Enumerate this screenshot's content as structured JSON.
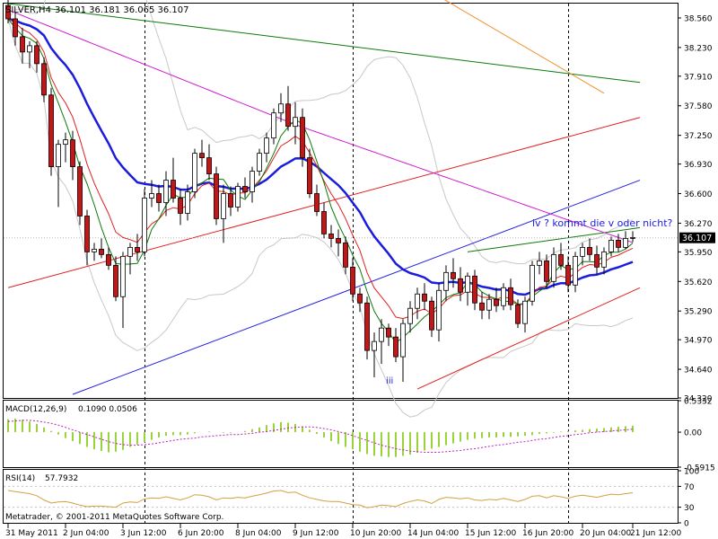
{
  "header": {
    "symbol": "SILVER,H4",
    "ohlc": "36.101 36.181 36.065 36.107"
  },
  "annotations": {
    "wave_note": "iv ? kommt die v oder nicht?",
    "wave_label": "iii"
  },
  "footer": {
    "copyright": "Metatrader, © 2001-2011 MetaQuotes Software Corp."
  },
  "colors": {
    "background": "#ffffff",
    "bull_candle": "#ffffff",
    "bear_candle": "#c81414",
    "candle_outline": "#000000",
    "ma_blue": "#1c1cdc",
    "ma_red": "#e02020",
    "ma_green": "#0a7a0a",
    "ma_magenta": "#d020d0",
    "ma_orange": "#f0902a",
    "bollinger": "#c8c8c8",
    "channel_red": "#e02020",
    "channel_blue": "#2020e0",
    "trend_green": "#0a7a0a",
    "annotation": "#1c1cdc",
    "macd_hist": "#9ad23a",
    "macd_signal": "#c020c0",
    "rsi_line": "#d4a040",
    "price_marker": "#000000"
  },
  "chart_data": [
    {
      "type": "candlestick",
      "title": "SILVER,H4",
      "price_axis_ticks": [
        38.56,
        38.23,
        37.91,
        37.58,
        37.25,
        36.93,
        36.6,
        36.27,
        35.95,
        35.62,
        35.29,
        34.97,
        34.64,
        34.32
      ],
      "price_axis_labels": [
        "38.560",
        "38.230",
        "37.910",
        "37.580",
        "37.250",
        "36.930",
        "36.600",
        "36.270",
        "35.950",
        "35.620",
        "35.290",
        "34.970",
        "34.640",
        "34.320"
      ],
      "ylim": [
        34.32,
        38.72
      ],
      "current_price": 36.107,
      "current_price_label": "36.107",
      "time_axis_labels": [
        "31 May 2011",
        "2 Jun 04:00",
        "3 Jun 12:00",
        "6 Jun 20:00",
        "8 Jun 04:00",
        "9 Jun 12:00",
        "10 Jun 20:00",
        "14 Jun 04:00",
        "15 Jun 12:00",
        "16 Jun 20:00",
        "20 Jun 04:00",
        "21 Jun 12:00"
      ],
      "time_axis_bar_index": [
        0,
        8,
        16,
        24,
        32,
        40,
        48,
        56,
        64,
        72,
        80,
        87
      ],
      "period_separators_bar_index": [
        19,
        48,
        78
      ],
      "candles": [
        {
          "o": 38.7,
          "h": 38.8,
          "l": 38.5,
          "c": 38.55
        },
        {
          "o": 38.55,
          "h": 38.62,
          "l": 38.25,
          "c": 38.35
        },
        {
          "o": 38.35,
          "h": 38.45,
          "l": 38.05,
          "c": 38.18
        },
        {
          "o": 38.18,
          "h": 38.3,
          "l": 38.0,
          "c": 38.25
        },
        {
          "o": 38.25,
          "h": 38.3,
          "l": 37.95,
          "c": 38.05
        },
        {
          "o": 38.05,
          "h": 38.12,
          "l": 37.62,
          "c": 37.7
        },
        {
          "o": 37.7,
          "h": 37.78,
          "l": 36.8,
          "c": 36.9
        },
        {
          "o": 36.9,
          "h": 37.2,
          "l": 36.45,
          "c": 37.15
        },
        {
          "o": 37.15,
          "h": 37.28,
          "l": 36.95,
          "c": 37.2
        },
        {
          "o": 37.2,
          "h": 37.3,
          "l": 36.75,
          "c": 36.9
        },
        {
          "o": 36.9,
          "h": 36.96,
          "l": 36.25,
          "c": 36.35
        },
        {
          "o": 36.35,
          "h": 36.42,
          "l": 35.8,
          "c": 35.95
        },
        {
          "o": 35.95,
          "h": 36.05,
          "l": 35.85,
          "c": 35.98
        },
        {
          "o": 35.98,
          "h": 36.1,
          "l": 35.88,
          "c": 35.92
        },
        {
          "o": 35.92,
          "h": 36.0,
          "l": 35.75,
          "c": 35.8
        },
        {
          "o": 35.8,
          "h": 35.9,
          "l": 35.4,
          "c": 35.45
        },
        {
          "o": 35.45,
          "h": 35.95,
          "l": 35.1,
          "c": 35.9
        },
        {
          "o": 35.9,
          "h": 36.05,
          "l": 35.7,
          "c": 36.0
        },
        {
          "o": 36.0,
          "h": 36.15,
          "l": 35.85,
          "c": 35.95
        },
        {
          "o": 35.95,
          "h": 36.65,
          "l": 35.9,
          "c": 36.55
        },
        {
          "o": 36.55,
          "h": 36.75,
          "l": 36.45,
          "c": 36.6
        },
        {
          "o": 36.6,
          "h": 36.7,
          "l": 36.4,
          "c": 36.5
        },
        {
          "o": 36.5,
          "h": 36.85,
          "l": 36.35,
          "c": 36.75
        },
        {
          "o": 36.75,
          "h": 37.0,
          "l": 36.5,
          "c": 36.55
        },
        {
          "o": 36.55,
          "h": 36.65,
          "l": 36.25,
          "c": 36.38
        },
        {
          "o": 36.38,
          "h": 36.7,
          "l": 36.3,
          "c": 36.62
        },
        {
          "o": 36.62,
          "h": 37.1,
          "l": 36.55,
          "c": 37.05
        },
        {
          "o": 37.05,
          "h": 37.2,
          "l": 36.9,
          "c": 37.0
        },
        {
          "o": 37.0,
          "h": 37.15,
          "l": 36.75,
          "c": 36.82
        },
        {
          "o": 36.82,
          "h": 36.9,
          "l": 36.25,
          "c": 36.32
        },
        {
          "o": 36.32,
          "h": 36.7,
          "l": 36.05,
          "c": 36.6
        },
        {
          "o": 36.6,
          "h": 36.68,
          "l": 36.35,
          "c": 36.45
        },
        {
          "o": 36.45,
          "h": 36.72,
          "l": 36.4,
          "c": 36.68
        },
        {
          "o": 36.68,
          "h": 36.78,
          "l": 36.55,
          "c": 36.62
        },
        {
          "o": 36.62,
          "h": 36.9,
          "l": 36.5,
          "c": 36.85
        },
        {
          "o": 36.85,
          "h": 37.1,
          "l": 36.8,
          "c": 37.05
        },
        {
          "o": 37.05,
          "h": 37.28,
          "l": 36.95,
          "c": 37.22
        },
        {
          "o": 37.22,
          "h": 37.55,
          "l": 37.15,
          "c": 37.5
        },
        {
          "o": 37.5,
          "h": 37.72,
          "l": 37.4,
          "c": 37.6
        },
        {
          "o": 37.6,
          "h": 37.8,
          "l": 37.3,
          "c": 37.35
        },
        {
          "o": 37.35,
          "h": 37.62,
          "l": 37.15,
          "c": 37.45
        },
        {
          "o": 37.45,
          "h": 37.55,
          "l": 36.9,
          "c": 37.0
        },
        {
          "o": 37.0,
          "h": 37.1,
          "l": 36.55,
          "c": 36.6
        },
        {
          "o": 36.6,
          "h": 36.7,
          "l": 36.35,
          "c": 36.4
        },
        {
          "o": 36.4,
          "h": 36.5,
          "l": 36.1,
          "c": 36.15
        },
        {
          "o": 36.15,
          "h": 36.25,
          "l": 36.0,
          "c": 36.1
        },
        {
          "o": 36.1,
          "h": 36.2,
          "l": 35.9,
          "c": 36.05
        },
        {
          "o": 36.05,
          "h": 36.12,
          "l": 35.7,
          "c": 35.78
        },
        {
          "o": 35.78,
          "h": 35.88,
          "l": 35.4,
          "c": 35.48
        },
        {
          "o": 35.48,
          "h": 35.55,
          "l": 35.28,
          "c": 35.38
        },
        {
          "o": 35.38,
          "h": 35.45,
          "l": 34.75,
          "c": 34.85
        },
        {
          "o": 34.85,
          "h": 35.05,
          "l": 34.55,
          "c": 34.95
        },
        {
          "o": 34.95,
          "h": 35.2,
          "l": 34.7,
          "c": 35.1
        },
        {
          "o": 35.1,
          "h": 35.15,
          "l": 34.9,
          "c": 35.0
        },
        {
          "o": 35.0,
          "h": 35.1,
          "l": 34.72,
          "c": 34.78
        },
        {
          "o": 34.78,
          "h": 35.2,
          "l": 34.5,
          "c": 35.15
        },
        {
          "o": 35.15,
          "h": 35.4,
          "l": 35.05,
          "c": 35.32
        },
        {
          "o": 35.32,
          "h": 35.55,
          "l": 35.2,
          "c": 35.48
        },
        {
          "o": 35.48,
          "h": 35.6,
          "l": 35.3,
          "c": 35.4
        },
        {
          "o": 35.4,
          "h": 35.45,
          "l": 35.0,
          "c": 35.08
        },
        {
          "o": 35.08,
          "h": 35.6,
          "l": 34.95,
          "c": 35.52
        },
        {
          "o": 35.52,
          "h": 35.8,
          "l": 35.4,
          "c": 35.72
        },
        {
          "o": 35.72,
          "h": 35.88,
          "l": 35.55,
          "c": 35.65
        },
        {
          "o": 35.65,
          "h": 35.78,
          "l": 35.4,
          "c": 35.5
        },
        {
          "o": 35.5,
          "h": 35.72,
          "l": 35.35,
          "c": 35.68
        },
        {
          "o": 35.68,
          "h": 35.75,
          "l": 35.3,
          "c": 35.38
        },
        {
          "o": 35.38,
          "h": 35.5,
          "l": 35.2,
          "c": 35.3
        },
        {
          "o": 35.3,
          "h": 35.48,
          "l": 35.2,
          "c": 35.42
        },
        {
          "o": 35.42,
          "h": 35.55,
          "l": 35.28,
          "c": 35.35
        },
        {
          "o": 35.35,
          "h": 35.6,
          "l": 35.3,
          "c": 35.55
        },
        {
          "o": 35.55,
          "h": 35.65,
          "l": 35.3,
          "c": 35.36
        },
        {
          "o": 35.36,
          "h": 35.42,
          "l": 35.1,
          "c": 35.15
        },
        {
          "o": 35.15,
          "h": 35.45,
          "l": 35.05,
          "c": 35.4
        },
        {
          "o": 35.4,
          "h": 35.85,
          "l": 35.35,
          "c": 35.8
        },
        {
          "o": 35.8,
          "h": 35.95,
          "l": 35.7,
          "c": 35.85
        },
        {
          "o": 35.85,
          "h": 35.92,
          "l": 35.55,
          "c": 35.62
        },
        {
          "o": 35.62,
          "h": 36.0,
          "l": 35.55,
          "c": 35.92
        },
        {
          "o": 35.92,
          "h": 36.05,
          "l": 35.75,
          "c": 35.8
        },
        {
          "o": 35.8,
          "h": 35.9,
          "l": 35.5,
          "c": 35.58
        },
        {
          "o": 35.58,
          "h": 35.95,
          "l": 35.5,
          "c": 35.9
        },
        {
          "o": 35.9,
          "h": 36.05,
          "l": 35.8,
          "c": 36.0
        },
        {
          "o": 36.0,
          "h": 36.1,
          "l": 35.85,
          "c": 35.92
        },
        {
          "o": 35.92,
          "h": 36.02,
          "l": 35.7,
          "c": 35.78
        },
        {
          "o": 35.78,
          "h": 36.0,
          "l": 35.7,
          "c": 35.95
        },
        {
          "o": 35.95,
          "h": 36.12,
          "l": 35.9,
          "c": 36.08
        },
        {
          "o": 36.08,
          "h": 36.15,
          "l": 35.95,
          "c": 36.0
        },
        {
          "o": 36.0,
          "h": 36.18,
          "l": 35.98,
          "c": 36.1
        },
        {
          "o": 36.1,
          "h": 36.18,
          "l": 36.06,
          "c": 36.11
        }
      ],
      "overlay_lines": [
        {
          "color_key": "channel_red",
          "p1": [
            0,
            35.55
          ],
          "p2": [
            88,
            37.45
          ]
        },
        {
          "color_key": "channel_red",
          "p1": [
            57,
            34.42
          ],
          "p2": [
            88,
            35.55
          ]
        },
        {
          "color_key": "channel_blue",
          "p1": [
            9,
            34.36
          ],
          "p2": [
            88,
            36.75
          ]
        },
        {
          "color_key": "trend_green",
          "p1": [
            0,
            38.72
          ],
          "p2": [
            88,
            37.84
          ]
        },
        {
          "color_key": "trend_green",
          "p1": [
            64,
            35.95
          ],
          "p2": [
            88,
            36.22
          ]
        },
        {
          "color_key": "ma_orange",
          "p1": [
            60,
            38.8
          ],
          "p2": [
            83,
            37.72
          ]
        }
      ]
    },
    {
      "type": "bar",
      "title": "MACD(12,26,9)",
      "values_label": "0.1090 0.0506",
      "axis_labels": [
        "0.5332",
        "0.00",
        "-0.5915"
      ],
      "ylim": [
        -0.5915,
        0.5332
      ],
      "histogram": [
        0.22,
        0.23,
        0.21,
        0.18,
        0.14,
        0.08,
        0.02,
        -0.04,
        -0.1,
        -0.15,
        -0.2,
        -0.25,
        -0.29,
        -0.32,
        -0.34,
        -0.33,
        -0.3,
        -0.25,
        -0.21,
        -0.17,
        -0.13,
        -0.09,
        -0.06,
        -0.05,
        -0.05,
        -0.04,
        -0.02,
        0.0,
        0.01,
        0.0,
        -0.01,
        -0.01,
        0.0,
        0.02,
        0.05,
        0.08,
        0.12,
        0.15,
        0.17,
        0.16,
        0.14,
        0.1,
        0.04,
        -0.03,
        -0.09,
        -0.15,
        -0.2,
        -0.25,
        -0.29,
        -0.33,
        -0.37,
        -0.4,
        -0.41,
        -0.42,
        -0.42,
        -0.4,
        -0.38,
        -0.35,
        -0.31,
        -0.28,
        -0.25,
        -0.22,
        -0.19,
        -0.16,
        -0.13,
        -0.11,
        -0.1,
        -0.09,
        -0.09,
        -0.08,
        -0.08,
        -0.07,
        -0.06,
        -0.05,
        -0.03,
        -0.02,
        -0.01,
        0.01,
        0.02,
        0.03,
        0.04,
        0.05,
        0.06,
        0.07,
        0.08,
        0.09,
        0.1,
        0.11
      ],
      "signal": [
        0.18,
        0.19,
        0.2,
        0.2,
        0.19,
        0.17,
        0.15,
        0.12,
        0.08,
        0.04,
        0.0,
        -0.04,
        -0.08,
        -0.12,
        -0.16,
        -0.19,
        -0.21,
        -0.22,
        -0.22,
        -0.21,
        -0.2,
        -0.18,
        -0.16,
        -0.14,
        -0.12,
        -0.11,
        -0.1,
        -0.08,
        -0.07,
        -0.06,
        -0.05,
        -0.04,
        -0.04,
        -0.03,
        -0.02,
        0.0,
        0.01,
        0.03,
        0.05,
        0.07,
        0.08,
        0.09,
        0.09,
        0.08,
        0.06,
        0.04,
        0.01,
        -0.02,
        -0.06,
        -0.1,
        -0.14,
        -0.18,
        -0.22,
        -0.25,
        -0.28,
        -0.3,
        -0.32,
        -0.33,
        -0.34,
        -0.34,
        -0.34,
        -0.33,
        -0.32,
        -0.31,
        -0.29,
        -0.28,
        -0.26,
        -0.24,
        -0.22,
        -0.21,
        -0.19,
        -0.17,
        -0.16,
        -0.14,
        -0.12,
        -0.11,
        -0.09,
        -0.07,
        -0.06,
        -0.04,
        -0.03,
        -0.01,
        0.0,
        0.01,
        0.02,
        0.03,
        0.04,
        0.05
      ]
    },
    {
      "type": "line",
      "title": "RSI(14)",
      "values_label": "57.7932",
      "axis_labels": [
        "100",
        "70",
        "30",
        "0"
      ],
      "ylim": [
        0,
        100
      ],
      "levels": [
        70,
        30
      ],
      "series": [
        {
          "values": [
            62,
            60,
            58,
            56,
            52,
            44,
            38,
            40,
            41,
            38,
            34,
            31,
            32,
            32,
            31,
            30,
            38,
            40,
            39,
            46,
            48,
            47,
            50,
            47,
            44,
            48,
            54,
            53,
            50,
            44,
            48,
            47,
            49,
            48,
            51,
            54,
            57,
            61,
            62,
            58,
            59,
            53,
            48,
            45,
            42,
            41,
            41,
            38,
            35,
            34,
            29,
            31,
            34,
            33,
            31,
            37,
            41,
            44,
            42,
            37,
            45,
            49,
            48,
            46,
            48,
            44,
            43,
            45,
            44,
            47,
            44,
            41,
            45,
            51,
            52,
            48,
            52,
            50,
            47,
            51,
            53,
            51,
            49,
            52,
            55,
            54,
            56,
            57.8
          ]
        }
      ]
    }
  ]
}
